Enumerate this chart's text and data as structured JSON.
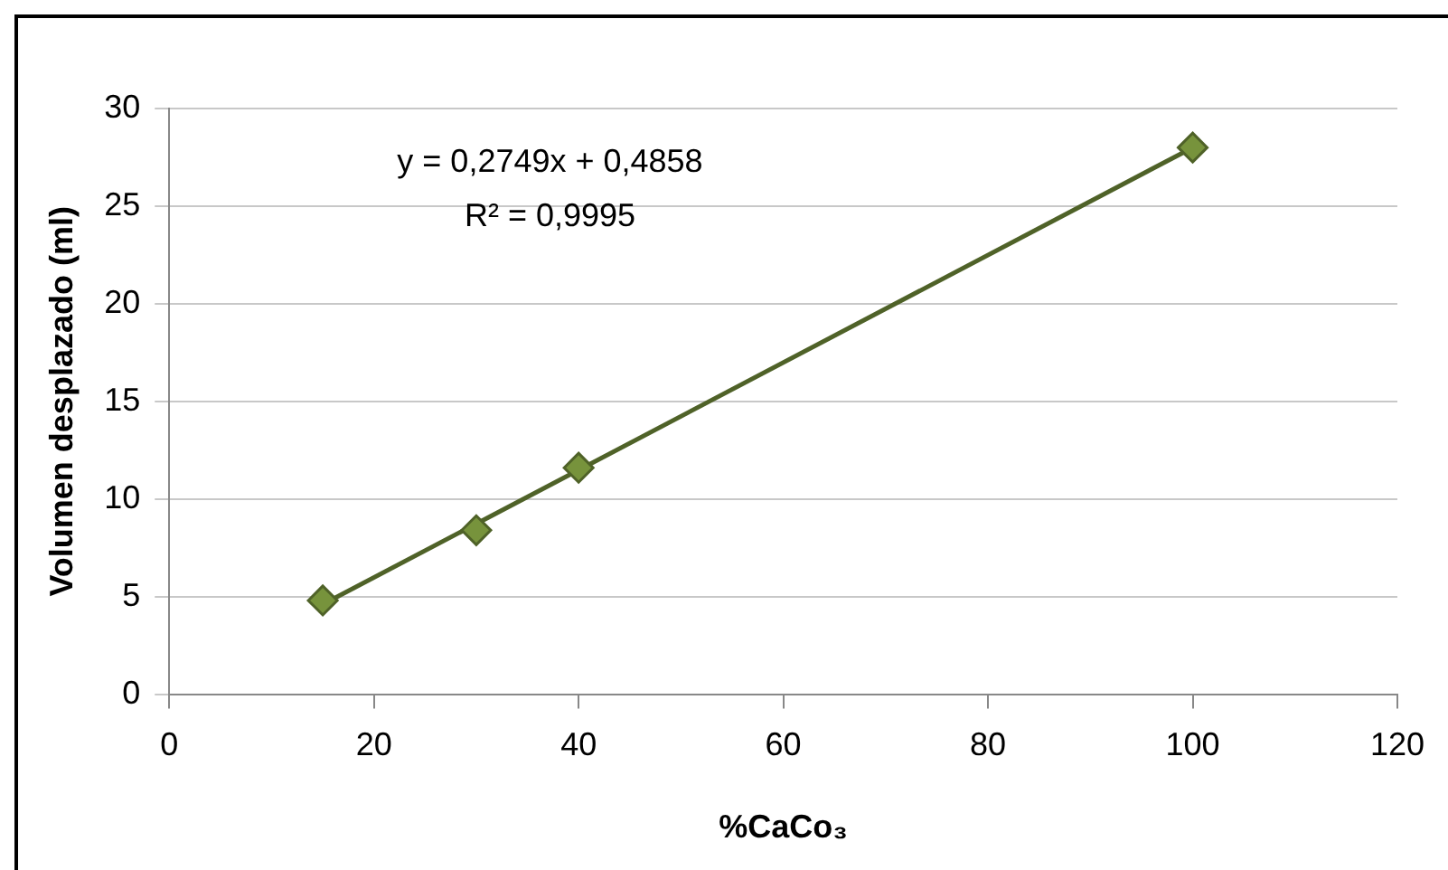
{
  "chart_data": {
    "type": "scatter",
    "xlabel": "%CaCo₃",
    "ylabel": "Volumen desplazado (ml)",
    "x": [
      15,
      30,
      40,
      100
    ],
    "series": [
      {
        "color": "#77933c",
        "values": [
          4.8,
          8.4,
          11.6,
          28.0
        ]
      },
      {
        "type": "line",
        "marker": "none",
        "color": "#4f6228",
        "x": [
          15,
          100
        ],
        "values": [
          4.6,
          28.0
        ]
      }
    ],
    "xlim": [
      0,
      120
    ],
    "xticks": [
      0,
      20,
      40,
      60,
      80,
      100,
      120
    ],
    "ylim": [
      0,
      30
    ],
    "yticks": [
      0,
      5,
      10,
      15,
      20,
      25,
      30
    ],
    "grid": "y",
    "legend": false,
    "marker": "diamond",
    "line_style": "solid",
    "annotations": [
      "y = 0,2749x + 0,4858",
      "R² = 0,9995"
    ]
  }
}
